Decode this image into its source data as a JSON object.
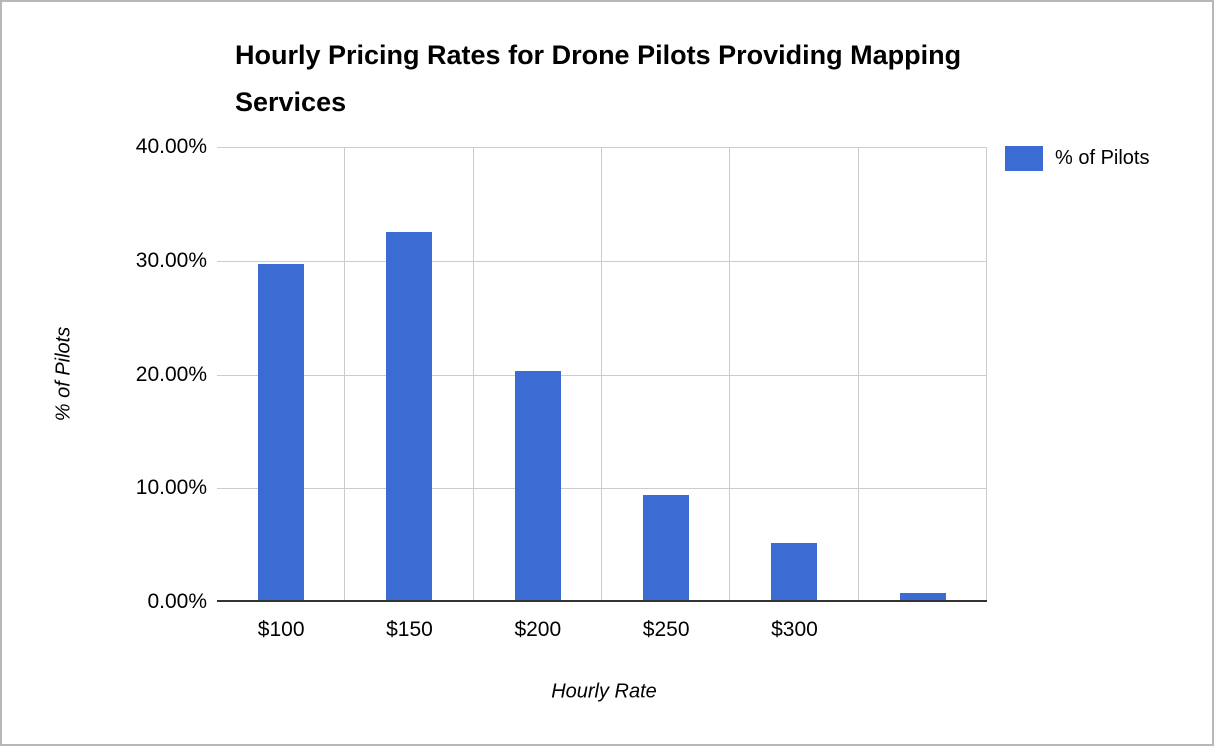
{
  "chart_data": {
    "type": "bar",
    "title": "Hourly Pricing Rates for Drone Pilots Providing Mapping Services",
    "xlabel": "Hourly Rate",
    "ylabel": "% of Pilots",
    "categories": [
      "$100",
      "$150",
      "$200",
      "$250",
      "$300",
      ""
    ],
    "values": [
      29.7,
      32.5,
      20.3,
      9.4,
      5.2,
      0.8
    ],
    "value_unit": "percent",
    "ylim": [
      0,
      40
    ],
    "yticks": [
      "40.00%",
      "30.00%",
      "20.00%",
      "10.00%",
      "0.00%"
    ],
    "ytick_values": [
      40,
      30,
      20,
      10,
      0
    ],
    "grid": true,
    "legend": {
      "position": "right",
      "entries": [
        {
          "label": "% of Pilots",
          "color": "#3b6cd4"
        }
      ]
    },
    "colors": {
      "bar": "#3b6cd4",
      "gridline": "#cccccc",
      "axis_line": "#333333",
      "text": "#000000",
      "border": "#b7b7b7",
      "background": "#ffffff"
    }
  }
}
